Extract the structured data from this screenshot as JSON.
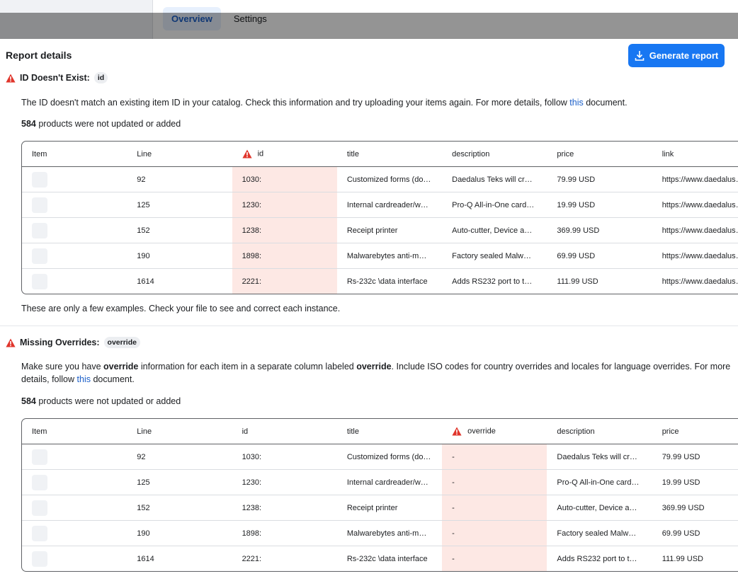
{
  "tabs": [
    "Overview",
    "Settings"
  ],
  "header": {
    "title": "Report details",
    "button": "Generate report"
  },
  "sections": [
    {
      "title": "ID Doesn't Exist:",
      "tag": "id",
      "description": [
        {
          "text": "The ID doesn't match an existing item ID in your catalog. Check this information and try uploading your items again. For more details, follow "
        },
        {
          "text": "this",
          "style": "link"
        },
        {
          "text": " document."
        }
      ],
      "count": "584",
      "count_text": "products were not updated or added",
      "table": {
        "columns": [
          "Item",
          "Line",
          "id",
          "title",
          "description",
          "price",
          "link"
        ],
        "flagged_column": 2,
        "rows": [
          [
            "92",
            "1030:",
            "Customized forms (do…",
            "Daedalus Teks will cr…",
            "79.99 USD",
            "https://www.daedalus…"
          ],
          [
            "125",
            "1230:",
            "Internal cardreader/w…",
            "Pro-Q All-in-One card…",
            "19.99 USD",
            "https://www.daedalus…"
          ],
          [
            "152",
            "1238:",
            "Receipt printer",
            "Auto-cutter, Device a…",
            "369.99 USD",
            "https://www.daedalus…"
          ],
          [
            "190",
            "1898:",
            "Malwarebytes anti-m…",
            "Factory sealed Malw…",
            "69.99 USD",
            "https://www.daedalus…"
          ],
          [
            "1614",
            "2221:",
            "Rs-232c \\data interface",
            "Adds RS232 port to t…",
            "111.99 USD",
            "https://www.daedalus…"
          ]
        ]
      },
      "footer": "These are only a few examples. Check your file to see and correct each instance."
    },
    {
      "title": "Missing Overrides:",
      "tag": "override",
      "description": [
        {
          "text": "Make sure you have "
        },
        {
          "text": "override",
          "style": "bold"
        },
        {
          "text": " information for each item in a separate column labeled "
        },
        {
          "text": "override",
          "style": "bold"
        },
        {
          "text": ". Include ISO codes for country overrides and locales for language overrides. For more details, follow "
        },
        {
          "text": "this",
          "style": "link"
        },
        {
          "text": " document."
        }
      ],
      "count": "584",
      "count_text": "products were not updated or added",
      "table": {
        "columns": [
          "Item",
          "Line",
          "id",
          "title",
          "override",
          "description",
          "price"
        ],
        "flagged_column": 4,
        "rows": [
          [
            "92",
            "1030:",
            "Customized forms (do…",
            "-",
            "Daedalus Teks will cr…",
            "79.99 USD"
          ],
          [
            "125",
            "1230:",
            "Internal cardreader/w…",
            "-",
            "Pro-Q All-in-One card…",
            "19.99 USD"
          ],
          [
            "152",
            "1238:",
            "Receipt printer",
            "-",
            "Auto-cutter, Device a…",
            "369.99 USD"
          ],
          [
            "190",
            "1898:",
            "Malwarebytes anti-m…",
            "-",
            "Factory sealed Malw…",
            "69.99 USD"
          ],
          [
            "1614",
            "2221:",
            "Rs-232c \\data interface",
            "-",
            "Adds RS232 port to t…",
            "111.99 USD"
          ]
        ]
      }
    }
  ]
}
